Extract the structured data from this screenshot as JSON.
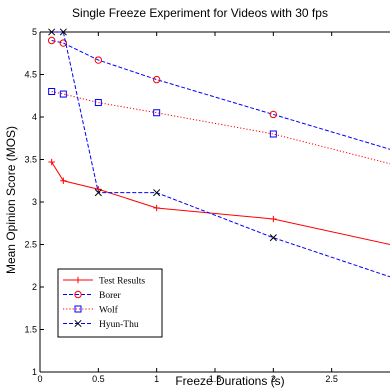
{
  "chart_data": {
    "type": "line",
    "title": "Single Freeze Experiment for Videos with 30 fps",
    "xlabel": "Freeze Durations (s)",
    "ylabel": "Mean Opinion Score (MOS)",
    "xlim": [
      0,
      3
    ],
    "ylim": [
      1,
      5
    ],
    "xticks": [
      0,
      0.5,
      1,
      1.5,
      2,
      2.5
    ],
    "yticks": [
      1,
      1.5,
      2,
      2.5,
      3,
      3.5,
      4,
      4.5,
      5
    ],
    "grid": false,
    "legend_position": "bottom-left",
    "series": [
      {
        "name": "Test Results",
        "color": "#ff0000",
        "line": "solid",
        "marker": "plus",
        "x": [
          0.1,
          0.2,
          0.5,
          1,
          2,
          3
        ],
        "y": [
          3.47,
          3.25,
          3.15,
          2.93,
          2.8,
          2.5
        ]
      },
      {
        "name": "Borer",
        "color": "#ff0000",
        "line": "dashdot",
        "marker": "circle",
        "x": [
          0.1,
          0.2,
          0.5,
          1,
          2,
          3
        ],
        "y": [
          4.9,
          4.87,
          4.67,
          4.44,
          4.03,
          3.62
        ]
      },
      {
        "name": "Wolf",
        "color": "#ff0000",
        "line": "dotted",
        "marker": "square",
        "x": [
          0.1,
          0.2,
          0.5,
          1,
          2,
          3
        ],
        "y": [
          4.3,
          4.27,
          4.17,
          4.05,
          3.8,
          3.45
        ]
      },
      {
        "name": "Hyun-Thu",
        "color": "#0000ff",
        "line": "dashdot",
        "marker": "x",
        "x": [
          0.1,
          0.2,
          0.5,
          1,
          2,
          3
        ],
        "y": [
          5.0,
          5.0,
          3.11,
          3.11,
          2.58,
          2.12
        ]
      }
    ],
    "series_styles": {
      "Borer": {
        "line_color": "#0000ff"
      },
      "Wolf": {
        "marker_color": "#0000ff"
      },
      "Hyun-Thu": {
        "marker_color": "#000000"
      }
    }
  }
}
